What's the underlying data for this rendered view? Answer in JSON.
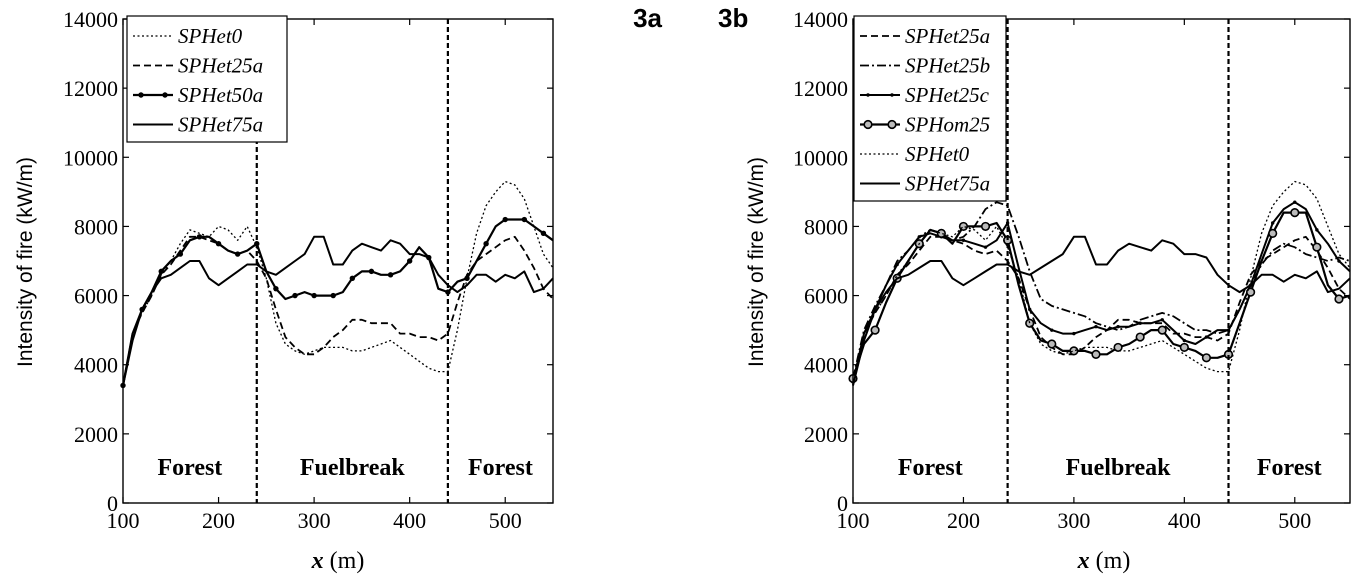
{
  "chart_data": [
    {
      "panel_label": "3a",
      "type": "line",
      "xlabel_var": "x",
      "xlabel_unit": " (m)",
      "ylabel": "Intensity of fire (kW/m)",
      "xlim": [
        100,
        550
      ],
      "ylim": [
        0,
        14000
      ],
      "xticks": [
        100,
        200,
        300,
        400,
        500
      ],
      "yticks": [
        0,
        2000,
        4000,
        6000,
        8000,
        10000,
        12000,
        14000
      ],
      "legend_position": "top-left",
      "boundaries": [
        240,
        440
      ],
      "regions": [
        {
          "label": "Forest",
          "x": 170
        },
        {
          "label": "Fuelbreak",
          "x": 340
        },
        {
          "label": "Forest",
          "x": 495
        }
      ],
      "series": [
        {
          "name": "SPHet0",
          "style": "dotted",
          "x": [
            100,
            110,
            120,
            130,
            140,
            150,
            160,
            170,
            180,
            190,
            200,
            210,
            220,
            230,
            240,
            250,
            260,
            270,
            280,
            290,
            300,
            310,
            320,
            330,
            340,
            350,
            360,
            370,
            380,
            390,
            400,
            410,
            420,
            430,
            440,
            450,
            460,
            470,
            480,
            490,
            500,
            510,
            520,
            530,
            540,
            550
          ],
          "y": [
            3400,
            4900,
            5500,
            6000,
            6600,
            7000,
            7500,
            7900,
            7800,
            7700,
            8000,
            7900,
            7600,
            8000,
            7400,
            6500,
            5200,
            4600,
            4400,
            4300,
            4400,
            4500,
            4500,
            4500,
            4400,
            4400,
            4500,
            4600,
            4700,
            4500,
            4300,
            4100,
            3900,
            3800,
            3800,
            5000,
            6500,
            7800,
            8600,
            9000,
            9300,
            9200,
            8800,
            8000,
            7200,
            6800
          ]
        },
        {
          "name": "SPHet25a",
          "style": "dashed",
          "x": [
            100,
            110,
            120,
            130,
            140,
            150,
            160,
            170,
            180,
            190,
            200,
            210,
            220,
            230,
            240,
            250,
            260,
            270,
            280,
            290,
            300,
            310,
            320,
            330,
            340,
            350,
            360,
            370,
            380,
            390,
            400,
            410,
            420,
            430,
            440,
            450,
            460,
            470,
            480,
            490,
            500,
            510,
            520,
            530,
            540,
            550
          ],
          "y": [
            3400,
            4900,
            5500,
            6000,
            6600,
            6900,
            7300,
            7700,
            7700,
            7600,
            7500,
            7300,
            7200,
            7300,
            7000,
            6500,
            5600,
            4800,
            4500,
            4300,
            4300,
            4500,
            4800,
            5000,
            5300,
            5300,
            5200,
            5200,
            5200,
            4900,
            4900,
            4800,
            4800,
            4700,
            4900,
            5800,
            6600,
            7000,
            7200,
            7400,
            7600,
            7700,
            7300,
            6800,
            6200,
            5900
          ]
        },
        {
          "name": "SPHet50a",
          "style": "solid-dots",
          "x": [
            100,
            110,
            120,
            130,
            140,
            150,
            160,
            170,
            180,
            190,
            200,
            210,
            220,
            230,
            240,
            250,
            260,
            270,
            280,
            290,
            300,
            310,
            320,
            330,
            340,
            350,
            360,
            370,
            380,
            390,
            400,
            410,
            420,
            430,
            440,
            450,
            460,
            470,
            480,
            490,
            500,
            510,
            520,
            530,
            540,
            550
          ],
          "y": [
            3400,
            4900,
            5600,
            6100,
            6700,
            7000,
            7200,
            7600,
            7700,
            7700,
            7500,
            7300,
            7200,
            7300,
            7500,
            6700,
            6200,
            5900,
            6000,
            6100,
            6000,
            6000,
            6000,
            6100,
            6500,
            6700,
            6700,
            6600,
            6600,
            6700,
            7000,
            7400,
            7100,
            6200,
            6100,
            6400,
            6500,
            7000,
            7500,
            8000,
            8200,
            8200,
            8200,
            8000,
            7800,
            7600
          ]
        },
        {
          "name": "SPHet75a",
          "style": "solid",
          "x": [
            100,
            110,
            120,
            130,
            140,
            150,
            160,
            170,
            180,
            190,
            200,
            210,
            220,
            230,
            240,
            250,
            260,
            270,
            280,
            290,
            300,
            310,
            320,
            330,
            340,
            350,
            360,
            370,
            380,
            390,
            400,
            410,
            420,
            430,
            440,
            450,
            460,
            470,
            480,
            490,
            500,
            510,
            520,
            530,
            540,
            550
          ],
          "y": [
            3400,
            4700,
            5600,
            6100,
            6500,
            6600,
            6800,
            7000,
            7000,
            6500,
            6300,
            6500,
            6700,
            6900,
            6900,
            6700,
            6600,
            6800,
            7000,
            7200,
            7700,
            7700,
            6900,
            6900,
            7300,
            7500,
            7400,
            7300,
            7600,
            7500,
            7200,
            7200,
            7100,
            6600,
            6300,
            6100,
            6300,
            6600,
            6600,
            6400,
            6600,
            6500,
            6700,
            6100,
            6200,
            6500
          ]
        }
      ]
    },
    {
      "panel_label": "3b",
      "type": "line",
      "xlabel_var": "x",
      "xlabel_unit": " (m)",
      "ylabel": "Intensity of fire (kW/m)",
      "xlim": [
        100,
        550
      ],
      "ylim": [
        0,
        14000
      ],
      "xticks": [
        100,
        200,
        300,
        400,
        500
      ],
      "yticks": [
        0,
        2000,
        4000,
        6000,
        8000,
        10000,
        12000,
        14000
      ],
      "legend_position": "top-left",
      "boundaries": [
        240,
        440
      ],
      "regions": [
        {
          "label": "Forest",
          "x": 170
        },
        {
          "label": "Fuelbreak",
          "x": 340
        },
        {
          "label": "Forest",
          "x": 495
        }
      ],
      "series": [
        {
          "name": "SPHet25a",
          "style": "dashed",
          "x": [
            100,
            110,
            120,
            130,
            140,
            150,
            160,
            170,
            180,
            190,
            200,
            210,
            220,
            230,
            240,
            250,
            260,
            270,
            280,
            290,
            300,
            310,
            320,
            330,
            340,
            350,
            360,
            370,
            380,
            390,
            400,
            410,
            420,
            430,
            440,
            450,
            460,
            470,
            480,
            490,
            500,
            510,
            520,
            530,
            540,
            550
          ],
          "y": [
            3400,
            4900,
            5500,
            6000,
            6600,
            6900,
            7300,
            7700,
            7700,
            7600,
            7500,
            7300,
            7200,
            7300,
            7000,
            6500,
            5600,
            4800,
            4500,
            4300,
            4300,
            4500,
            4800,
            5000,
            5300,
            5300,
            5200,
            5200,
            5200,
            4900,
            4900,
            4800,
            4800,
            4700,
            4900,
            5800,
            6600,
            7000,
            7200,
            7400,
            7600,
            7700,
            7300,
            6800,
            6200,
            5900
          ]
        },
        {
          "name": "SPHet25b",
          "style": "dashdot",
          "x": [
            100,
            110,
            120,
            130,
            140,
            150,
            160,
            170,
            180,
            190,
            200,
            210,
            220,
            230,
            240,
            250,
            260,
            270,
            280,
            290,
            300,
            310,
            320,
            330,
            340,
            350,
            360,
            370,
            380,
            390,
            400,
            410,
            420,
            430,
            440,
            450,
            460,
            470,
            480,
            490,
            500,
            510,
            520,
            530,
            540,
            550
          ],
          "y": [
            3600,
            5000,
            5700,
            6300,
            7000,
            7300,
            7700,
            7900,
            7800,
            7600,
            7700,
            8000,
            8500,
            8700,
            8600,
            7700,
            6700,
            5900,
            5700,
            5600,
            5500,
            5400,
            5200,
            5100,
            5000,
            5100,
            5300,
            5400,
            5500,
            5400,
            5200,
            5000,
            5000,
            4900,
            5000,
            5600,
            6300,
            6900,
            7300,
            7500,
            7400,
            7200,
            7100,
            7000,
            7100,
            7000
          ]
        },
        {
          "name": "SPHet25c",
          "style": "solid-small",
          "x": [
            100,
            110,
            120,
            130,
            140,
            150,
            160,
            170,
            180,
            190,
            200,
            210,
            220,
            230,
            240,
            250,
            260,
            270,
            280,
            290,
            300,
            310,
            320,
            330,
            340,
            350,
            360,
            370,
            380,
            390,
            400,
            410,
            420,
            430,
            440,
            450,
            460,
            470,
            480,
            490,
            500,
            510,
            520,
            530,
            540,
            550
          ],
          "y": [
            3500,
            4900,
            5600,
            6300,
            6900,
            7300,
            7700,
            7800,
            7700,
            7600,
            7600,
            7500,
            7400,
            7600,
            8100,
            6800,
            5600,
            5200,
            5000,
            4900,
            4900,
            5000,
            5100,
            5000,
            5100,
            5100,
            5200,
            5200,
            5300,
            5000,
            4700,
            4600,
            4800,
            5000,
            5000,
            5600,
            6300,
            7200,
            8100,
            8500,
            8700,
            8500,
            7900,
            7500,
            7000,
            6700
          ]
        },
        {
          "name": "SPHom25",
          "style": "solid-circles",
          "x": [
            100,
            110,
            120,
            130,
            140,
            150,
            160,
            170,
            180,
            190,
            200,
            210,
            220,
            230,
            240,
            250,
            260,
            270,
            280,
            290,
            300,
            310,
            320,
            330,
            340,
            350,
            360,
            370,
            380,
            390,
            400,
            410,
            420,
            430,
            440,
            450,
            460,
            470,
            480,
            490,
            500,
            510,
            520,
            530,
            540,
            550
          ],
          "y": [
            3600,
            4600,
            5000,
            5800,
            6500,
            7000,
            7500,
            7900,
            7800,
            7500,
            8000,
            8000,
            8000,
            8100,
            7600,
            6300,
            5200,
            4700,
            4600,
            4400,
            4400,
            4400,
            4300,
            4300,
            4500,
            4600,
            4800,
            5000,
            5000,
            4600,
            4500,
            4400,
            4200,
            4200,
            4300,
            5200,
            6100,
            7000,
            7800,
            8400,
            8400,
            8400,
            7400,
            6300,
            5900,
            6000
          ]
        },
        {
          "name": "SPHet0",
          "style": "dotted",
          "x": [
            100,
            110,
            120,
            130,
            140,
            150,
            160,
            170,
            180,
            190,
            200,
            210,
            220,
            230,
            240,
            250,
            260,
            270,
            280,
            290,
            300,
            310,
            320,
            330,
            340,
            350,
            360,
            370,
            380,
            390,
            400,
            410,
            420,
            430,
            440,
            450,
            460,
            470,
            480,
            490,
            500,
            510,
            520,
            530,
            540,
            550
          ],
          "y": [
            3400,
            4900,
            5500,
            6000,
            6600,
            7000,
            7500,
            7900,
            7800,
            7700,
            8000,
            7900,
            7600,
            8000,
            7400,
            6500,
            5200,
            4600,
            4400,
            4300,
            4400,
            4500,
            4500,
            4500,
            4400,
            4400,
            4500,
            4600,
            4700,
            4500,
            4300,
            4100,
            3900,
            3800,
            3800,
            5000,
            6500,
            7800,
            8600,
            9000,
            9300,
            9200,
            8800,
            8000,
            7200,
            6800
          ]
        },
        {
          "name": "SPHet75a",
          "style": "solid",
          "x": [
            100,
            110,
            120,
            130,
            140,
            150,
            160,
            170,
            180,
            190,
            200,
            210,
            220,
            230,
            240,
            250,
            260,
            270,
            280,
            290,
            300,
            310,
            320,
            330,
            340,
            350,
            360,
            370,
            380,
            390,
            400,
            410,
            420,
            430,
            440,
            450,
            460,
            470,
            480,
            490,
            500,
            510,
            520,
            530,
            540,
            550
          ],
          "y": [
            3400,
            4700,
            5600,
            6100,
            6500,
            6600,
            6800,
            7000,
            7000,
            6500,
            6300,
            6500,
            6700,
            6900,
            6900,
            6700,
            6600,
            6800,
            7000,
            7200,
            7700,
            7700,
            6900,
            6900,
            7300,
            7500,
            7400,
            7300,
            7600,
            7500,
            7200,
            7200,
            7100,
            6600,
            6300,
            6100,
            6300,
            6600,
            6600,
            6400,
            6600,
            6500,
            6700,
            6100,
            6200,
            6500
          ]
        }
      ]
    }
  ]
}
